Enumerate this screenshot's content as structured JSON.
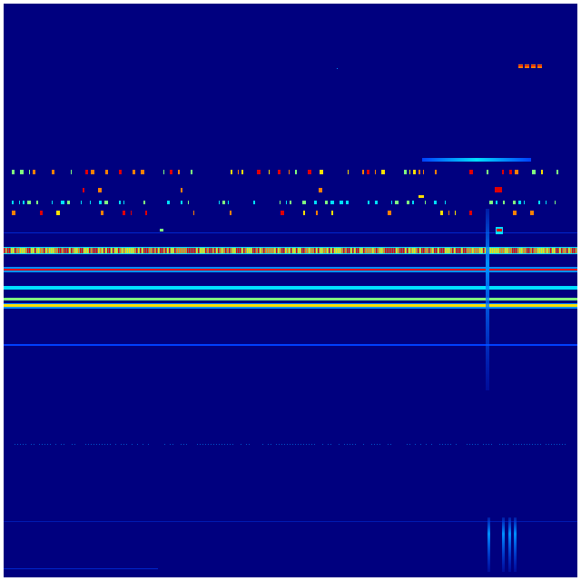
{
  "view": "spectrogram-waterfall",
  "colormap": "jet",
  "colors": {
    "background": "#00007f",
    "blue": "#0040ff",
    "light_blue": "#0090ff",
    "cyan": "#00e0ff",
    "green": "#80ff80",
    "yellow": "#ffe000",
    "orange": "#ff8000",
    "red": "#e00000"
  }
}
